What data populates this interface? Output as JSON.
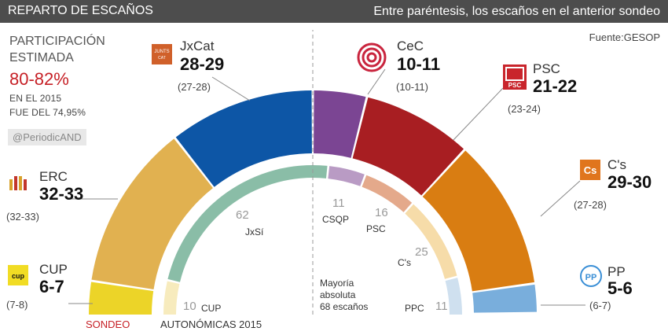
{
  "header": {
    "title": "REPARTO DE ESCAÑOS",
    "subtitle": "Entre paréntesis, los escaños en el anterior sondeo"
  },
  "source": "Fuente:GESOP",
  "participation": {
    "line1": "PARTICIPACIÓN",
    "line2": "ESTIMADA",
    "value": "80-82%",
    "note1": "EN EL 2015",
    "note2": "FUE DEL 74,95%"
  },
  "handle": "@PeriodicAND",
  "labels": {
    "sondeo": "SONDEO",
    "autonomicas": "AUTONÓMICAS  2015",
    "majority1": "Mayoría",
    "majority2": "absoluta",
    "majority3": "68 escaños"
  },
  "colors": {
    "CUP": "#ecd428",
    "ERC": "#e1b150",
    "JxCat": "#0d56a6",
    "CeC": "#7b4593",
    "PSC": "#a81e22",
    "Cs": "#d97d12",
    "PP": "#79aedc"
  },
  "parties": {
    "CUP": {
      "name": "CUP",
      "range": "6-7",
      "prev": "(7-8)",
      "icon": "cup-logo-icon"
    },
    "ERC": {
      "name": "ERC",
      "range": "32-33",
      "prev": "(32-33)",
      "icon": "erc-logo-icon"
    },
    "JxCat": {
      "name": "JxCat",
      "range": "28-29",
      "prev": "(27-28)",
      "icon": "jxcat-logo-icon"
    },
    "CeC": {
      "name": "CeC",
      "range": "10-11",
      "prev": "(10-11)",
      "icon": "cec-logo-icon"
    },
    "PSC": {
      "name": "PSC",
      "range": "21-22",
      "prev": "(23-24)",
      "icon": "psc-logo-icon"
    },
    "Cs": {
      "name": "C's",
      "range": "29-30",
      "prev": "(27-28)",
      "icon": "cs-logo-icon"
    },
    "PP": {
      "name": "PP",
      "range": "5-6",
      "prev": "(6-7)",
      "icon": "pp-logo-icon"
    }
  },
  "chart_data": [
    {
      "type": "pie",
      "subtype": "half-donut",
      "title": "SONDEO",
      "series": [
        {
          "values": [
            6.5,
            32.5,
            28.5,
            10.5,
            21.5,
            29.5,
            5.5
          ]
        }
      ],
      "categories": [
        "CUP",
        "ERC",
        "JxCat",
        "CeC",
        "PSC",
        "C's",
        "PP"
      ],
      "labels": [
        "6-7",
        "32-33",
        "28-29",
        "10-11",
        "21-22",
        "29-30",
        "5-6"
      ],
      "colors": [
        "#ecd428",
        "#e1b150",
        "#0d56a6",
        "#7b4593",
        "#a81e22",
        "#d97d12",
        "#79aedc"
      ],
      "total": 135
    },
    {
      "type": "pie",
      "subtype": "half-donut",
      "title": "AUTONÓMICAS  2015",
      "categories": [
        "CUP",
        "JxSí",
        "CSQP",
        "PSC",
        "C's",
        "PPC"
      ],
      "series": [
        {
          "values": [
            10,
            62,
            11,
            16,
            25,
            11
          ]
        }
      ],
      "colors": [
        "#f7ebbd",
        "#8abda7",
        "#b99bc4",
        "#e4a98b",
        "#f6dca9",
        "#cfe0ef"
      ],
      "total": 135,
      "annotation": "Mayoría absoluta 68 escaños"
    }
  ]
}
